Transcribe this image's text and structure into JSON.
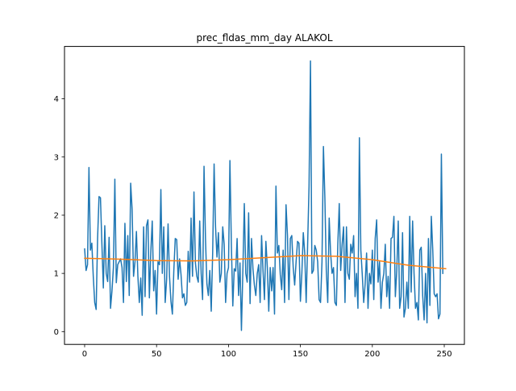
{
  "chart_data": {
    "type": "line",
    "title": "prec_fldas_mm_day ALAKOL",
    "xlabel": "",
    "ylabel": "",
    "xlim": [
      -14,
      264
    ],
    "ylim": [
      -0.22,
      4.9
    ],
    "xticks": [
      0,
      50,
      100,
      150,
      200,
      250
    ],
    "yticks": [
      0,
      1,
      2,
      3,
      4
    ],
    "grid": false,
    "legend": "none",
    "series": [
      {
        "color": "#1f77b4",
        "x_start": 0,
        "values": [
          1.42,
          1.05,
          1.15,
          2.82,
          1.4,
          1.52,
          0.95,
          0.5,
          0.38,
          1.6,
          2.32,
          2.3,
          1.5,
          0.75,
          1.82,
          1.0,
          0.86,
          1.62,
          0.4,
          0.7,
          1.1,
          2.62,
          0.84,
          1.15,
          1.2,
          1.25,
          1.1,
          0.5,
          1.86,
          0.86,
          1.65,
          0.62,
          2.55,
          2.1,
          0.95,
          1.2,
          1.72,
          0.96,
          0.5,
          0.92,
          0.28,
          1.8,
          0.6,
          1.82,
          1.92,
          0.58,
          1.38,
          1.9,
          0.7,
          1.05,
          0.3,
          1.2,
          1.15,
          2.44,
          1.0,
          1.8,
          0.5,
          0.9,
          1.85,
          0.95,
          0.52,
          0.3,
          1.05,
          1.6,
          1.58,
          0.9,
          1.25,
          0.98,
          0.58,
          0.65,
          0.45,
          0.5,
          1.38,
          0.85,
          1.95,
          0.95,
          2.4,
          1.18,
          0.95,
          0.85,
          1.9,
          1.0,
          0.55,
          2.84,
          1.6,
          0.82,
          0.62,
          1.05,
          0.35,
          1.35,
          2.88,
          1.8,
          1.28,
          1.7,
          0.85,
          1.0,
          1.8,
          1.5,
          0.5,
          1.0,
          1.1,
          2.94,
          1.5,
          0.44,
          1.08,
          1.04,
          1.6,
          0.62,
          1.18,
          0.02,
          1.05,
          2.2,
          1.0,
          0.85,
          2.04,
          0.48,
          1.6,
          1.08,
          0.8,
          0.62,
          1.0,
          1.15,
          0.5,
          1.65,
          1.05,
          0.55,
          1.55,
          1.1,
          0.35,
          1.1,
          0.7,
          1.1,
          0.3,
          2.5,
          1.35,
          1.48,
          0.98,
          0.72,
          1.4,
          0.5,
          2.18,
          1.65,
          0.55,
          1.6,
          1.65,
          1.1,
          0.8,
          1.2,
          1.55,
          1.52,
          0.52,
          1.0,
          1.7,
          1.35,
          0.5,
          1.48,
          2.5,
          4.65,
          1.0,
          1.05,
          1.48,
          1.4,
          1.2,
          0.55,
          0.5,
          1.2,
          3.18,
          2.3,
          1.05,
          0.5,
          1.95,
          1.35,
          1.0,
          1.1,
          0.5,
          0.45,
          1.5,
          2.2,
          1.05,
          1.5,
          1.8,
          0.5,
          1.8,
          1.0,
          0.9,
          1.5,
          1.35,
          1.65,
          0.6,
          1.0,
          0.4,
          3.33,
          1.4,
          0.98,
          0.5,
          0.82,
          1.35,
          0.4,
          1.0,
          0.82,
          1.4,
          0.55,
          1.6,
          1.92,
          0.85,
          1.2,
          0.4,
          0.85,
          1.0,
          1.5,
          0.6,
          0.95,
          0.4,
          1.6,
          1.62,
          1.98,
          0.6,
          1.05,
          1.9,
          0.4,
          0.6,
          1.7,
          0.25,
          0.4,
          0.85,
          0.4,
          1.98,
          0.68,
          1.9,
          1.0,
          0.4,
          0.5,
          0.2,
          1.4,
          1.45,
          0.62,
          0.2,
          1.0,
          0.15,
          1.6,
          0.45,
          1.98,
          1.4,
          0.65,
          0.6,
          0.65,
          0.22,
          0.3,
          3.05,
          1.0
        ]
      },
      {
        "color": "#ff7f0e",
        "x": [
          0,
          25,
          50,
          75,
          100,
          125,
          150,
          175,
          200,
          225,
          251
        ],
        "y": [
          1.26,
          1.245,
          1.22,
          1.215,
          1.235,
          1.27,
          1.305,
          1.295,
          1.235,
          1.14,
          1.08
        ]
      }
    ]
  }
}
